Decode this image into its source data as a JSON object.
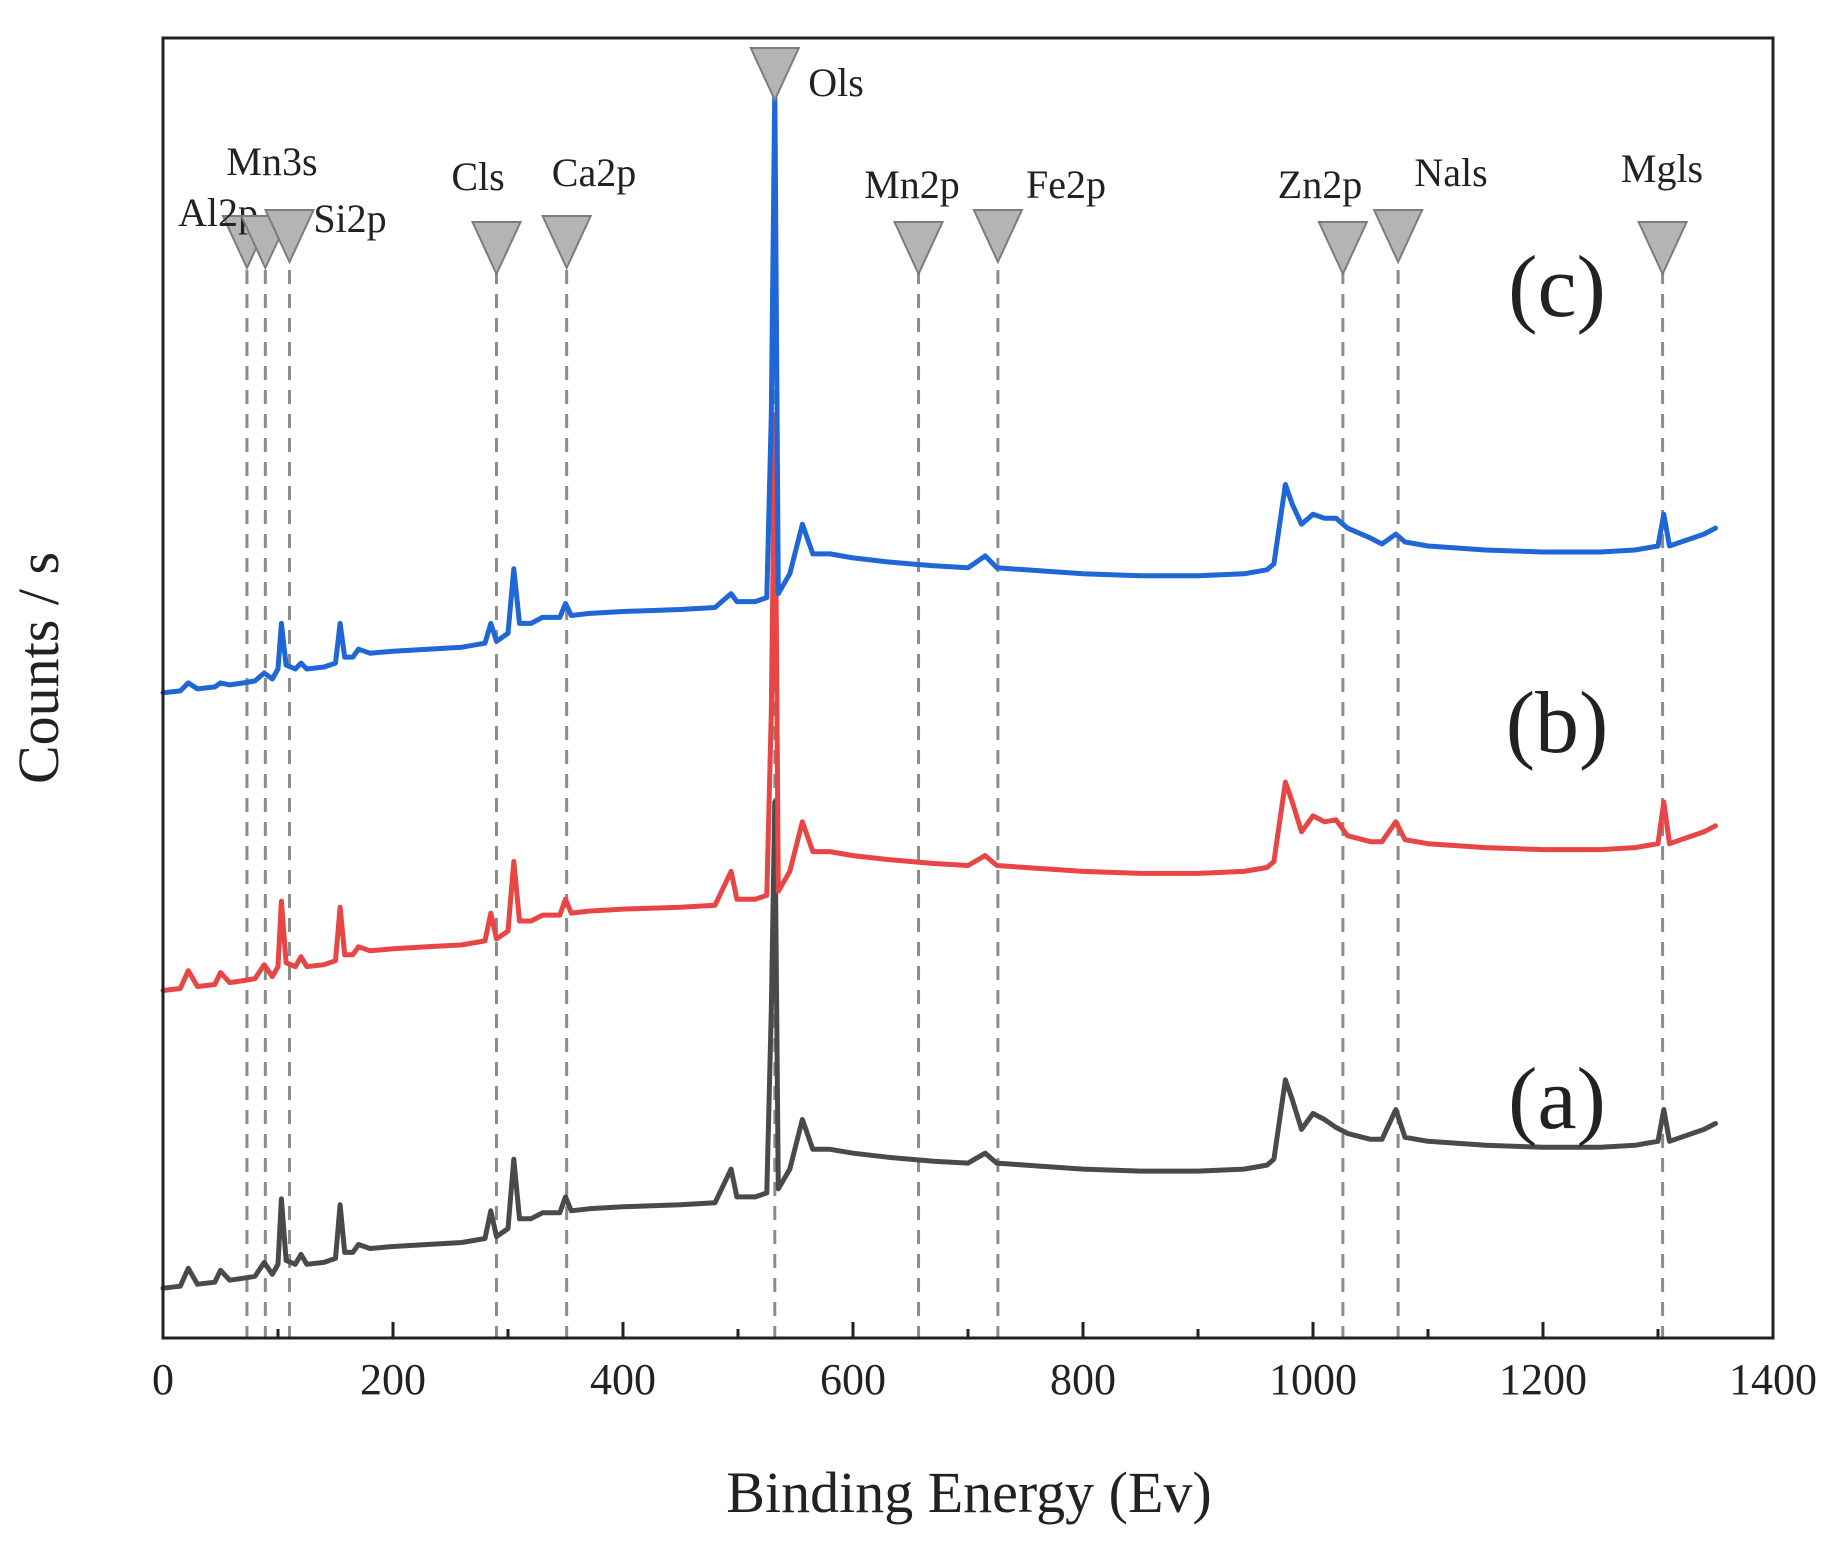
{
  "chart_data": {
    "type": "line",
    "xlabel": "Binding Energy (Ev)",
    "ylabel": "Counts / s",
    "xlim": [
      0,
      1400
    ],
    "xticks": [
      0,
      200,
      400,
      600,
      800,
      1000,
      1200,
      1400
    ],
    "x_minor_step": 100,
    "yticks": [],
    "grid": false,
    "series_label_color": "#e8101a",
    "marker_color": "#b4b4b4",
    "guide_color": "#8c8c8c",
    "series": [
      {
        "name": "(a)",
        "color": "#4a4a4a",
        "offset": 0,
        "points": [
          [
            0,
            20
          ],
          [
            15,
            22
          ],
          [
            22,
            40
          ],
          [
            30,
            24
          ],
          [
            45,
            26
          ],
          [
            50,
            38
          ],
          [
            58,
            28
          ],
          [
            70,
            30
          ],
          [
            80,
            32
          ],
          [
            88,
            46
          ],
          [
            95,
            34
          ],
          [
            100,
            44
          ],
          [
            103,
            110
          ],
          [
            107,
            48
          ],
          [
            115,
            44
          ],
          [
            120,
            54
          ],
          [
            125,
            44
          ],
          [
            140,
            46
          ],
          [
            150,
            50
          ],
          [
            154,
            104
          ],
          [
            158,
            56
          ],
          [
            165,
            56
          ],
          [
            170,
            64
          ],
          [
            180,
            60
          ],
          [
            200,
            62
          ],
          [
            230,
            64
          ],
          [
            260,
            66
          ],
          [
            280,
            70
          ],
          [
            285,
            98
          ],
          [
            290,
            72
          ],
          [
            300,
            80
          ],
          [
            305,
            150
          ],
          [
            310,
            90
          ],
          [
            320,
            90
          ],
          [
            330,
            96
          ],
          [
            345,
            96
          ],
          [
            350,
            112
          ],
          [
            355,
            98
          ],
          [
            370,
            100
          ],
          [
            400,
            102
          ],
          [
            450,
            104
          ],
          [
            480,
            106
          ],
          [
            494,
            140
          ],
          [
            499,
            112
          ],
          [
            515,
            112
          ],
          [
            525,
            116
          ],
          [
            529,
            300
          ],
          [
            532,
            510
          ],
          [
            535,
            120
          ],
          [
            545,
            140
          ],
          [
            556,
            190
          ],
          [
            565,
            160
          ],
          [
            580,
            160
          ],
          [
            600,
            156
          ],
          [
            630,
            152
          ],
          [
            650,
            150
          ],
          [
            670,
            148
          ],
          [
            700,
            146
          ],
          [
            715,
            156
          ],
          [
            725,
            146
          ],
          [
            750,
            144
          ],
          [
            800,
            140
          ],
          [
            850,
            138
          ],
          [
            900,
            138
          ],
          [
            940,
            140
          ],
          [
            960,
            144
          ],
          [
            966,
            150
          ],
          [
            976,
            230
          ],
          [
            982,
            210
          ],
          [
            990,
            180
          ],
          [
            1000,
            196
          ],
          [
            1010,
            190
          ],
          [
            1020,
            182
          ],
          [
            1030,
            176
          ],
          [
            1050,
            170
          ],
          [
            1060,
            170
          ],
          [
            1072,
            200
          ],
          [
            1080,
            172
          ],
          [
            1100,
            168
          ],
          [
            1150,
            164
          ],
          [
            1200,
            162
          ],
          [
            1250,
            162
          ],
          [
            1280,
            164
          ],
          [
            1300,
            168
          ],
          [
            1305,
            200
          ],
          [
            1310,
            168
          ],
          [
            1320,
            172
          ],
          [
            1340,
            180
          ],
          [
            1350,
            186
          ]
        ]
      },
      {
        "name": "(b)",
        "color": "#e84545",
        "offset": 300,
        "points": [
          [
            0,
            20
          ],
          [
            15,
            22
          ],
          [
            22,
            40
          ],
          [
            30,
            24
          ],
          [
            45,
            26
          ],
          [
            50,
            38
          ],
          [
            58,
            28
          ],
          [
            70,
            30
          ],
          [
            80,
            32
          ],
          [
            88,
            46
          ],
          [
            95,
            34
          ],
          [
            100,
            44
          ],
          [
            103,
            110
          ],
          [
            107,
            48
          ],
          [
            115,
            44
          ],
          [
            120,
            54
          ],
          [
            125,
            44
          ],
          [
            140,
            46
          ],
          [
            150,
            50
          ],
          [
            154,
            104
          ],
          [
            158,
            56
          ],
          [
            165,
            56
          ],
          [
            170,
            64
          ],
          [
            180,
            60
          ],
          [
            200,
            62
          ],
          [
            230,
            64
          ],
          [
            260,
            66
          ],
          [
            280,
            70
          ],
          [
            285,
            98
          ],
          [
            290,
            72
          ],
          [
            300,
            80
          ],
          [
            305,
            150
          ],
          [
            310,
            90
          ],
          [
            320,
            90
          ],
          [
            330,
            96
          ],
          [
            345,
            96
          ],
          [
            350,
            112
          ],
          [
            355,
            98
          ],
          [
            370,
            100
          ],
          [
            400,
            102
          ],
          [
            450,
            104
          ],
          [
            480,
            106
          ],
          [
            494,
            140
          ],
          [
            499,
            112
          ],
          [
            515,
            112
          ],
          [
            525,
            116
          ],
          [
            529,
            300
          ],
          [
            532,
            600
          ],
          [
            535,
            120
          ],
          [
            545,
            140
          ],
          [
            556,
            190
          ],
          [
            565,
            160
          ],
          [
            580,
            160
          ],
          [
            600,
            156
          ],
          [
            630,
            152
          ],
          [
            650,
            150
          ],
          [
            670,
            148
          ],
          [
            700,
            146
          ],
          [
            715,
            156
          ],
          [
            725,
            146
          ],
          [
            750,
            144
          ],
          [
            800,
            140
          ],
          [
            850,
            138
          ],
          [
            900,
            138
          ],
          [
            940,
            140
          ],
          [
            960,
            144
          ],
          [
            966,
            150
          ],
          [
            976,
            230
          ],
          [
            982,
            210
          ],
          [
            990,
            180
          ],
          [
            1000,
            196
          ],
          [
            1010,
            190
          ],
          [
            1020,
            192
          ],
          [
            1030,
            176
          ],
          [
            1050,
            170
          ],
          [
            1060,
            170
          ],
          [
            1072,
            190
          ],
          [
            1080,
            172
          ],
          [
            1100,
            168
          ],
          [
            1150,
            164
          ],
          [
            1200,
            162
          ],
          [
            1250,
            162
          ],
          [
            1280,
            164
          ],
          [
            1300,
            168
          ],
          [
            1305,
            210
          ],
          [
            1310,
            168
          ],
          [
            1320,
            172
          ],
          [
            1340,
            180
          ],
          [
            1350,
            186
          ]
        ]
      },
      {
        "name": "(c)",
        "color": "#1f66d6",
        "offset": 600,
        "points": [
          [
            0,
            20
          ],
          [
            15,
            22
          ],
          [
            22,
            30
          ],
          [
            30,
            24
          ],
          [
            45,
            26
          ],
          [
            50,
            30
          ],
          [
            58,
            28
          ],
          [
            70,
            30
          ],
          [
            80,
            32
          ],
          [
            88,
            40
          ],
          [
            95,
            34
          ],
          [
            100,
            44
          ],
          [
            103,
            90
          ],
          [
            107,
            48
          ],
          [
            115,
            44
          ],
          [
            120,
            50
          ],
          [
            125,
            44
          ],
          [
            140,
            46
          ],
          [
            150,
            50
          ],
          [
            154,
            90
          ],
          [
            158,
            56
          ],
          [
            165,
            56
          ],
          [
            170,
            64
          ],
          [
            180,
            60
          ],
          [
            200,
            62
          ],
          [
            230,
            64
          ],
          [
            260,
            66
          ],
          [
            280,
            70
          ],
          [
            285,
            90
          ],
          [
            290,
            72
          ],
          [
            300,
            80
          ],
          [
            305,
            145
          ],
          [
            310,
            90
          ],
          [
            320,
            90
          ],
          [
            330,
            96
          ],
          [
            345,
            96
          ],
          [
            350,
            110
          ],
          [
            355,
            98
          ],
          [
            370,
            100
          ],
          [
            400,
            102
          ],
          [
            450,
            104
          ],
          [
            480,
            106
          ],
          [
            494,
            120
          ],
          [
            499,
            112
          ],
          [
            515,
            112
          ],
          [
            525,
            116
          ],
          [
            529,
            300
          ],
          [
            532,
            630
          ],
          [
            535,
            120
          ],
          [
            545,
            140
          ],
          [
            556,
            190
          ],
          [
            565,
            160
          ],
          [
            580,
            160
          ],
          [
            600,
            156
          ],
          [
            630,
            152
          ],
          [
            650,
            150
          ],
          [
            670,
            148
          ],
          [
            700,
            146
          ],
          [
            715,
            158
          ],
          [
            725,
            146
          ],
          [
            750,
            144
          ],
          [
            800,
            140
          ],
          [
            850,
            138
          ],
          [
            900,
            138
          ],
          [
            940,
            140
          ],
          [
            960,
            144
          ],
          [
            966,
            150
          ],
          [
            976,
            230
          ],
          [
            982,
            210
          ],
          [
            990,
            190
          ],
          [
            1000,
            200
          ],
          [
            1010,
            196
          ],
          [
            1020,
            196
          ],
          [
            1030,
            186
          ],
          [
            1050,
            176
          ],
          [
            1060,
            170
          ],
          [
            1072,
            180
          ],
          [
            1080,
            172
          ],
          [
            1100,
            168
          ],
          [
            1150,
            164
          ],
          [
            1200,
            162
          ],
          [
            1250,
            162
          ],
          [
            1280,
            164
          ],
          [
            1300,
            168
          ],
          [
            1305,
            200
          ],
          [
            1310,
            168
          ],
          [
            1320,
            172
          ],
          [
            1340,
            180
          ],
          [
            1350,
            186
          ]
        ]
      }
    ],
    "peak_markers": [
      {
        "label": "Al2p",
        "x": 73
      },
      {
        "label": "Mn3s",
        "x": 89
      },
      {
        "label": "Si2p",
        "x": 110
      },
      {
        "label": "Cls",
        "x": 290
      },
      {
        "label": "Ca2p",
        "x": 351
      },
      {
        "label": "Ols",
        "x": 532
      },
      {
        "label": "Mn2p",
        "x": 657
      },
      {
        "label": "Fe2p",
        "x": 726
      },
      {
        "label": "Zn2p",
        "x": 1026
      },
      {
        "label": "Nals",
        "x": 1074
      },
      {
        "label": "Mgls",
        "x": 1304
      }
    ]
  }
}
